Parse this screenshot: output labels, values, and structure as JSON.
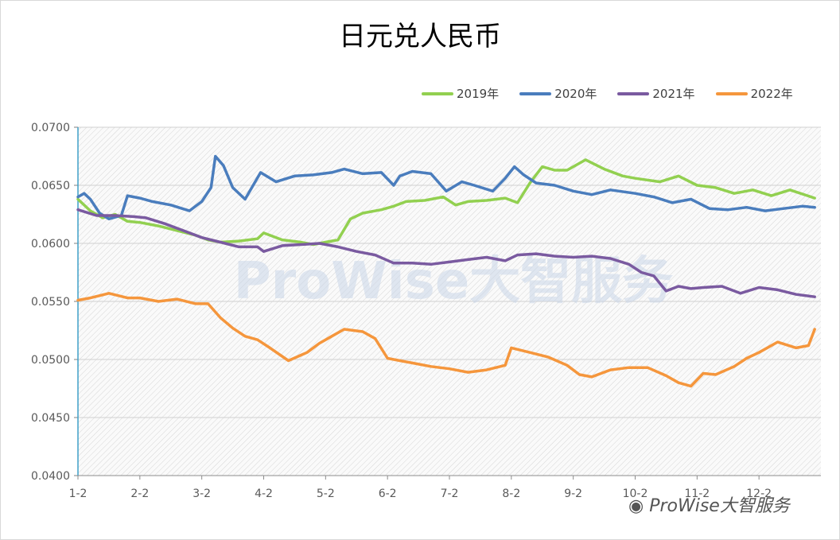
{
  "chart_data": {
    "type": "line",
    "title": "日元兑人民币",
    "xlabel": "",
    "ylabel": "",
    "ylim": [
      0.04,
      0.07
    ],
    "y_ticks": [
      "0.0700",
      "0.0650",
      "0.0600",
      "0.0550",
      "0.0500",
      "0.0450",
      "0.0400"
    ],
    "x_ticks": [
      "1-2",
      "2-2",
      "3-2",
      "4-2",
      "5-2",
      "6-2",
      "7-2",
      "8-2",
      "9-2",
      "10-2",
      "11-2",
      "12-2"
    ],
    "legend_position": "top-right",
    "grid": true,
    "series": [
      {
        "name": "2019年",
        "color": "#92d050",
        "x": [
          1.0,
          1.2,
          1.4,
          1.6,
          1.8,
          2.0,
          2.3,
          2.6,
          2.9,
          3.1,
          3.3,
          3.6,
          3.9,
          4.0,
          4.3,
          4.6,
          4.8,
          5.0,
          5.2,
          5.4,
          5.6,
          5.9,
          6.1,
          6.3,
          6.6,
          6.9,
          7.1,
          7.3,
          7.6,
          7.9,
          8.1,
          8.3,
          8.5,
          8.7,
          8.9,
          9.2,
          9.5,
          9.8,
          10.0,
          10.4,
          10.7,
          11.0,
          11.3,
          11.6,
          11.9,
          12.2,
          12.5,
          12.9
        ],
        "values": [
          0.0638,
          0.0628,
          0.0622,
          0.0625,
          0.0619,
          0.0618,
          0.0615,
          0.0611,
          0.0607,
          0.0603,
          0.0601,
          0.0602,
          0.0604,
          0.0609,
          0.0603,
          0.0601,
          0.0599,
          0.0601,
          0.0603,
          0.0621,
          0.0626,
          0.0629,
          0.0632,
          0.0636,
          0.0637,
          0.064,
          0.0633,
          0.0636,
          0.0637,
          0.0639,
          0.0635,
          0.0652,
          0.0666,
          0.0663,
          0.0663,
          0.0672,
          0.0664,
          0.0658,
          0.0656,
          0.0653,
          0.0658,
          0.065,
          0.0648,
          0.0643,
          0.0646,
          0.0641,
          0.0646,
          0.0639
        ]
      },
      {
        "name": "2020年",
        "color": "#4a7dbd",
        "x": [
          1.0,
          1.1,
          1.2,
          1.35,
          1.5,
          1.7,
          1.8,
          2.0,
          2.2,
          2.5,
          2.8,
          3.0,
          3.15,
          3.22,
          3.35,
          3.5,
          3.7,
          3.95,
          4.2,
          4.5,
          4.8,
          5.1,
          5.3,
          5.6,
          5.9,
          6.1,
          6.2,
          6.4,
          6.7,
          6.95,
          7.2,
          7.4,
          7.7,
          7.9,
          8.05,
          8.2,
          8.4,
          8.7,
          9.0,
          9.3,
          9.6,
          10.0,
          10.3,
          10.6,
          10.9,
          11.2,
          11.5,
          11.8,
          12.1,
          12.4,
          12.7,
          12.9
        ],
        "values": [
          0.064,
          0.0643,
          0.0638,
          0.0626,
          0.0621,
          0.0624,
          0.0641,
          0.0639,
          0.0636,
          0.0633,
          0.0628,
          0.0636,
          0.0648,
          0.0675,
          0.0667,
          0.0648,
          0.0638,
          0.0661,
          0.0653,
          0.0658,
          0.0659,
          0.0661,
          0.0664,
          0.066,
          0.0661,
          0.065,
          0.0658,
          0.0662,
          0.066,
          0.0645,
          0.0653,
          0.065,
          0.0645,
          0.0656,
          0.0666,
          0.0659,
          0.0652,
          0.065,
          0.0645,
          0.0642,
          0.0646,
          0.0643,
          0.064,
          0.0635,
          0.0638,
          0.063,
          0.0629,
          0.0631,
          0.0628,
          0.063,
          0.0632,
          0.0631
        ]
      },
      {
        "name": "2021年",
        "color": "#7a5aa0",
        "x": [
          1.0,
          1.3,
          1.6,
          1.9,
          2.1,
          2.4,
          2.7,
          3.0,
          3.3,
          3.6,
          3.9,
          4.0,
          4.3,
          4.6,
          4.9,
          5.2,
          5.5,
          5.8,
          6.1,
          6.4,
          6.7,
          7.0,
          7.3,
          7.6,
          7.9,
          8.1,
          8.4,
          8.7,
          9.0,
          9.3,
          9.6,
          9.9,
          10.1,
          10.3,
          10.5,
          10.7,
          10.9,
          11.1,
          11.4,
          11.7,
          12.0,
          12.3,
          12.6,
          12.9
        ],
        "values": [
          0.0629,
          0.0624,
          0.0624,
          0.0623,
          0.0622,
          0.0617,
          0.0611,
          0.0605,
          0.0601,
          0.0597,
          0.0597,
          0.0593,
          0.0598,
          0.0599,
          0.06,
          0.0597,
          0.0593,
          0.059,
          0.0583,
          0.0583,
          0.0582,
          0.0584,
          0.0586,
          0.0588,
          0.0585,
          0.059,
          0.0591,
          0.0589,
          0.0588,
          0.0589,
          0.0587,
          0.0582,
          0.0575,
          0.0572,
          0.0559,
          0.0563,
          0.0561,
          0.0562,
          0.0563,
          0.0557,
          0.0562,
          0.056,
          0.0556,
          0.0554
        ]
      },
      {
        "name": "2022年",
        "color": "#f5963c",
        "x": [
          1.0,
          1.2,
          1.5,
          1.8,
          2.0,
          2.3,
          2.6,
          2.9,
          3.1,
          3.3,
          3.5,
          3.7,
          3.9,
          4.1,
          4.4,
          4.7,
          4.9,
          5.1,
          5.3,
          5.6,
          5.8,
          6.0,
          6.2,
          6.4,
          6.7,
          7.0,
          7.3,
          7.6,
          7.9,
          8.0,
          8.3,
          8.6,
          8.9,
          9.1,
          9.3,
          9.6,
          9.9,
          10.2,
          10.5,
          10.7,
          10.9,
          11.1,
          11.3,
          11.6,
          11.8,
          12.0,
          12.3,
          12.6,
          12.8,
          12.9
        ],
        "values": [
          0.0551,
          0.0553,
          0.0557,
          0.0553,
          0.0553,
          0.055,
          0.0552,
          0.0548,
          0.0548,
          0.0536,
          0.0527,
          0.052,
          0.0517,
          0.051,
          0.0499,
          0.0506,
          0.0514,
          0.052,
          0.0526,
          0.0524,
          0.0518,
          0.0501,
          0.0499,
          0.0497,
          0.0494,
          0.0492,
          0.0489,
          0.0491,
          0.0495,
          0.051,
          0.0506,
          0.0502,
          0.0495,
          0.0487,
          0.0485,
          0.0491,
          0.0493,
          0.0493,
          0.0486,
          0.048,
          0.0477,
          0.0488,
          0.0487,
          0.0494,
          0.0501,
          0.0506,
          0.0515,
          0.051,
          0.0512,
          0.0526
        ]
      }
    ]
  },
  "watermark": "ProWise大智服务",
  "footer_mark": "ProWise大智服务"
}
